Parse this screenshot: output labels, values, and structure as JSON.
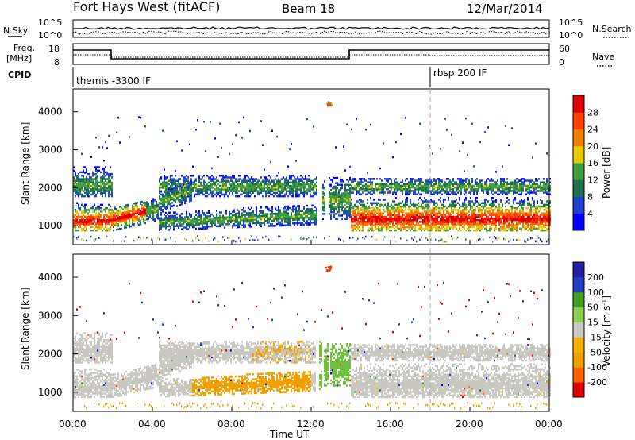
{
  "header": {
    "station": "Fort Hays West (fitACF)",
    "beam": "Beam 18",
    "date": "12/Mar/2014"
  },
  "top_panels": {
    "nsky_label": "N.Sky",
    "nsky_ticks": [
      "10^5",
      "10^0"
    ],
    "nsearch_label": "N.Search",
    "nsearch_ticks": [
      "10^5",
      "10^0"
    ],
    "freq_label_1": "Freq.",
    "freq_label_2": "[MHz]",
    "freq_ticks": [
      "18",
      "8"
    ],
    "nave_label": "Nave",
    "nave_ticks": [
      "60",
      "0"
    ],
    "cpid_label": "CPID",
    "cpid_segments": [
      {
        "label": "themis -3300 IF",
        "start_hour": 0
      },
      {
        "label": "rbsp 200 IF",
        "start_hour": 18
      }
    ]
  },
  "chart_data": [
    {
      "type": "heatmap",
      "title": "",
      "xlabel": "",
      "ylabel": "Slant Range [km]",
      "xlim": [
        0,
        24
      ],
      "ylim": [
        500,
        4600
      ],
      "yticks": [
        "1000",
        "2000",
        "3000",
        "4000"
      ],
      "colorbar": {
        "label": "Power [dB]",
        "ticks": [
          "4",
          "8",
          "12",
          "16",
          "20",
          "24",
          "28"
        ],
        "range": [
          0,
          32
        ],
        "colors": [
          "#0000ff",
          "#2040d0",
          "#207050",
          "#40a040",
          "#e8c800",
          "#f08000",
          "#ff4000",
          "#e00000"
        ]
      },
      "description_bands": [
        {
          "hours": [
            0,
            2
          ],
          "range_km": [
            900,
            1600
          ],
          "level_db": 20
        },
        {
          "hours": [
            2,
            4
          ],
          "range_km": [
            1000,
            1700
          ],
          "level_db": 22
        },
        {
          "hours": [
            4,
            12
          ],
          "range_km": [
            1800,
            2300
          ],
          "level_db": 8
        },
        {
          "hours": [
            6,
            12
          ],
          "range_km": [
            800,
            1300
          ],
          "level_db": 6
        },
        {
          "hours": [
            14,
            24
          ],
          "range_km": [
            900,
            1700
          ],
          "level_db": 22
        }
      ]
    },
    {
      "type": "heatmap",
      "title": "",
      "xlabel": "Time UT",
      "ylabel": "Slant Range [km]",
      "xlim": [
        0,
        24
      ],
      "ylim": [
        500,
        4600
      ],
      "yticks": [
        "1000",
        "2000",
        "3000",
        "4000"
      ],
      "xticks": [
        "00:00",
        "04:00",
        "08:00",
        "12:00",
        "16:00",
        "20:00",
        "00:00"
      ],
      "colorbar": {
        "label": "Velocity [m s^-1]",
        "ticks": [
          "200",
          "100",
          "50",
          "15",
          "-15",
          "-50",
          "-100",
          "-200"
        ],
        "range": [
          -250,
          250
        ],
        "colors": [
          "#e00000",
          "#ff6000",
          "#f0a000",
          "#f8b000",
          "#c8c8c0",
          "#90d050",
          "#40a020",
          "#2040c0",
          "#2020a0"
        ]
      }
    }
  ],
  "colors": {
    "gray_scatter": "#c8c8c0",
    "orange_scatter": "#f0a000",
    "green_scatter": "#70c040"
  }
}
